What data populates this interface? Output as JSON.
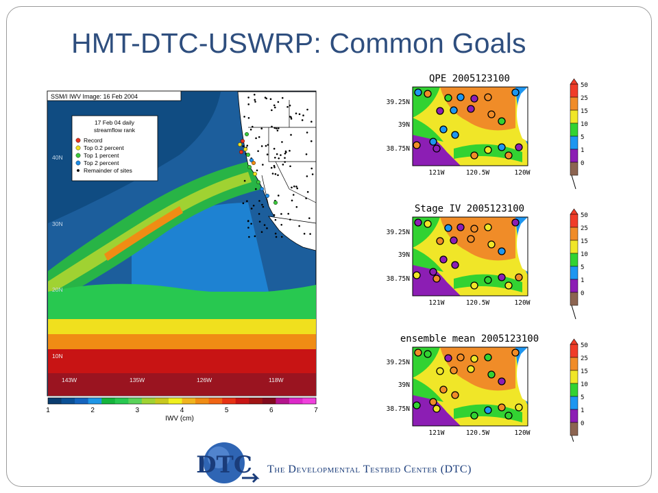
{
  "slide": {
    "title": "HMT-DTC-USWRP: Common Goals"
  },
  "ivw_map": {
    "header": "SSM/I IWV Image: 16 Feb 2004",
    "legend": {
      "title_line1": "17 Feb 04 daily",
      "title_line2": "streamflow rank",
      "entries": [
        {
          "label": "Record",
          "color": "#e8321e"
        },
        {
          "label": "Top 0.2 percent",
          "color": "#f0e020"
        },
        {
          "label": "Top 1 percent",
          "color": "#3cc83c"
        },
        {
          "label": "Top 2 percent",
          "color": "#1e8ce6"
        },
        {
          "label": "Remainder of sites",
          "color": "#000000"
        }
      ]
    },
    "lat_labels": [
      "40N",
      "30N",
      "20N",
      "10N"
    ],
    "lon_labels": [
      "143W",
      "135W",
      "126W",
      "118W"
    ],
    "colorbar": {
      "ticks": [
        "1",
        "2",
        "3",
        "4",
        "5",
        "6",
        "7"
      ],
      "label": "IWV (cm)",
      "colors": [
        "#0a3c6e",
        "#0a5096",
        "#1464be",
        "#1e96e6",
        "#14b43c",
        "#28c850",
        "#5ad25a",
        "#a0d232",
        "#c8c81e",
        "#f0f01e",
        "#f0b41e",
        "#f08c14",
        "#f06414",
        "#e63214",
        "#c81414",
        "#a01414",
        "#820a1e",
        "#b4148c",
        "#dc28c8",
        "#f040dc"
      ]
    }
  },
  "precip_panels": [
    {
      "title": "QPE 2005123100"
    },
    {
      "title": "Stage IV 2005123100"
    },
    {
      "title": "ensemble mean 2005123100"
    }
  ],
  "precip_axes": {
    "lat_labels": [
      "39.25N",
      "39N",
      "38.75N"
    ],
    "lon_labels": [
      "121W",
      "120.5W",
      "120W"
    ]
  },
  "precip_colorbar": {
    "levels": [
      "50",
      "25",
      "15",
      "10",
      "5",
      "1",
      "0"
    ],
    "colors": [
      "#f03c28",
      "#f08c28",
      "#f0e628",
      "#32d232",
      "#1e96f0",
      "#8c1eb4",
      "#8c6450"
    ]
  },
  "footer": {
    "logo_text": "DTC",
    "organization": "The Developmental Testbed Center (DTC)"
  }
}
